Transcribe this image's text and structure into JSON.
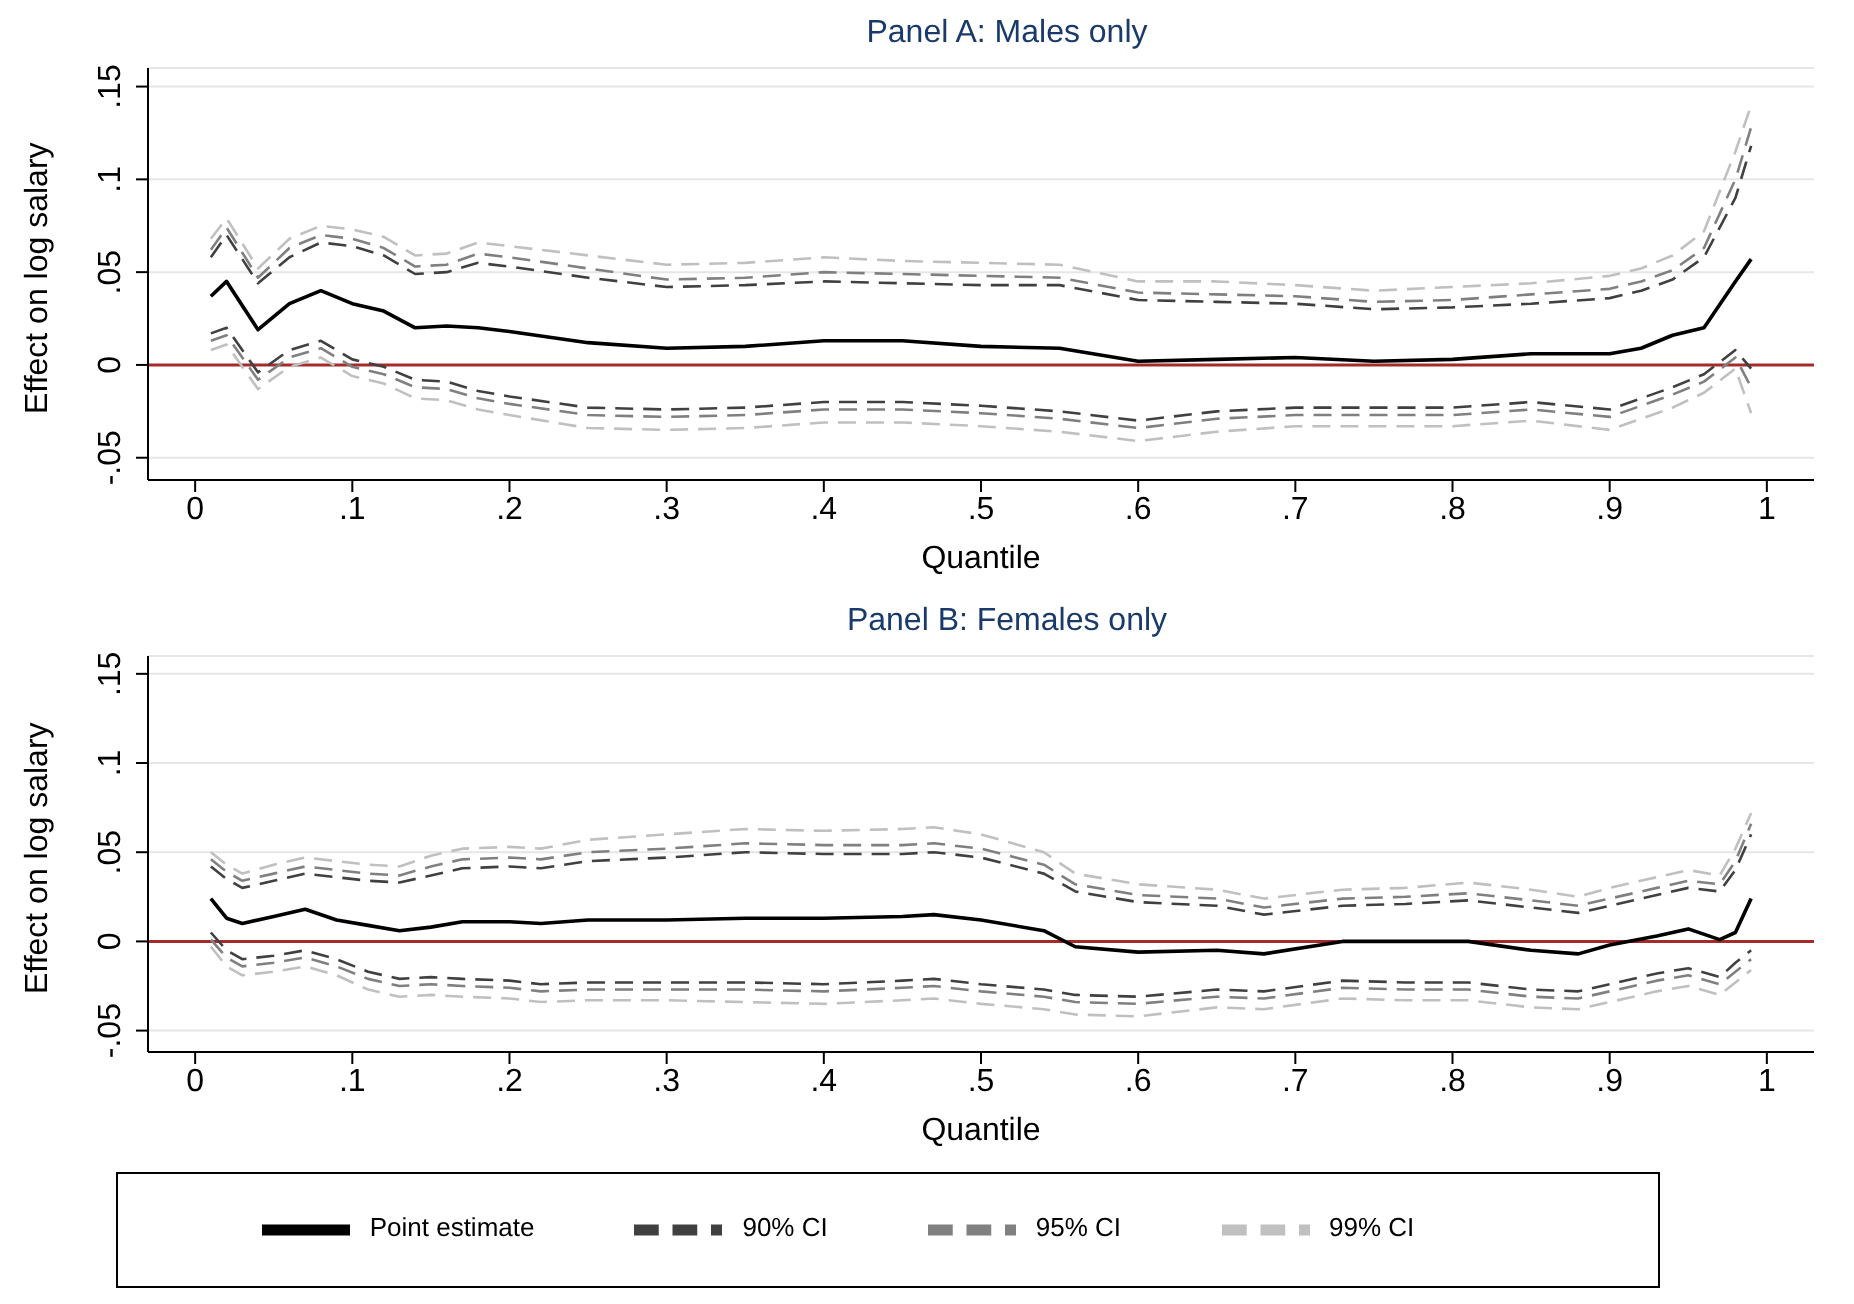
{
  "chart_data": [
    {
      "type": "line",
      "title": "Panel A: Males only",
      "xlabel": "Quantile",
      "ylabel": "Effect on log salary",
      "x": [
        0.01,
        0.02,
        0.04,
        0.06,
        0.08,
        0.1,
        0.12,
        0.14,
        0.16,
        0.18,
        0.2,
        0.25,
        0.3,
        0.35,
        0.4,
        0.45,
        0.5,
        0.55,
        0.6,
        0.65,
        0.7,
        0.75,
        0.8,
        0.85,
        0.9,
        0.92,
        0.94,
        0.96,
        0.98,
        0.99
      ],
      "series": [
        {
          "color": "#000000",
          "line_style": "solid",
          "values": [
            0.037,
            0.045,
            0.019,
            0.033,
            0.04,
            0.033,
            0.029,
            0.02,
            0.021,
            0.02,
            0.018,
            0.012,
            0.009,
            0.01,
            0.013,
            0.013,
            0.01,
            0.009,
            0.002,
            0.003,
            0.004,
            0.002,
            0.003,
            0.006,
            0.006,
            0.009,
            0.016,
            0.02,
            0.045,
            0.057
          ]
        },
        {
          "color": "#404040",
          "line_style": "dashed",
          "values": [
            0.058,
            0.07,
            0.044,
            0.058,
            0.066,
            0.064,
            0.059,
            0.049,
            0.05,
            0.055,
            0.053,
            0.047,
            0.042,
            0.043,
            0.045,
            0.044,
            0.043,
            0.043,
            0.035,
            0.034,
            0.033,
            0.03,
            0.031,
            0.033,
            0.036,
            0.04,
            0.046,
            0.058,
            0.09,
            0.118
          ]
        },
        {
          "color": "#404040",
          "line_style": "dashed",
          "values": [
            0.017,
            0.02,
            -0.004,
            0.008,
            0.013,
            0.003,
            -0.001,
            -0.008,
            -0.009,
            -0.014,
            -0.017,
            -0.023,
            -0.024,
            -0.023,
            -0.02,
            -0.02,
            -0.022,
            -0.025,
            -0.03,
            -0.025,
            -0.023,
            -0.023,
            -0.023,
            -0.02,
            -0.024,
            -0.018,
            -0.012,
            -0.005,
            0.008,
            -0.002
          ]
        },
        {
          "color": "#808080",
          "line_style": "dashed",
          "values": [
            0.062,
            0.074,
            0.047,
            0.063,
            0.07,
            0.068,
            0.063,
            0.053,
            0.054,
            0.06,
            0.058,
            0.052,
            0.046,
            0.047,
            0.05,
            0.049,
            0.048,
            0.047,
            0.039,
            0.038,
            0.037,
            0.034,
            0.035,
            0.038,
            0.041,
            0.045,
            0.051,
            0.063,
            0.1,
            0.128
          ]
        },
        {
          "color": "#808080",
          "line_style": "dashed",
          "values": [
            0.013,
            0.016,
            -0.008,
            0.004,
            0.009,
            -0.001,
            -0.005,
            -0.012,
            -0.013,
            -0.018,
            -0.021,
            -0.027,
            -0.028,
            -0.027,
            -0.024,
            -0.024,
            -0.026,
            -0.029,
            -0.034,
            -0.029,
            -0.027,
            -0.027,
            -0.027,
            -0.024,
            -0.028,
            -0.022,
            -0.016,
            -0.009,
            0.004,
            -0.012
          ]
        },
        {
          "color": "#c0c0c0",
          "line_style": "dashed",
          "values": [
            0.068,
            0.079,
            0.052,
            0.068,
            0.075,
            0.073,
            0.069,
            0.059,
            0.06,
            0.066,
            0.064,
            0.059,
            0.054,
            0.055,
            0.058,
            0.056,
            0.055,
            0.054,
            0.045,
            0.045,
            0.043,
            0.04,
            0.042,
            0.044,
            0.048,
            0.052,
            0.059,
            0.072,
            0.115,
            0.14
          ]
        },
        {
          "color": "#c0c0c0",
          "line_style": "dashed",
          "values": [
            0.008,
            0.011,
            -0.013,
            -0.001,
            0.004,
            -0.006,
            -0.01,
            -0.018,
            -0.019,
            -0.024,
            -0.027,
            -0.034,
            -0.035,
            -0.034,
            -0.031,
            -0.031,
            -0.033,
            -0.036,
            -0.041,
            -0.036,
            -0.033,
            -0.033,
            -0.033,
            -0.03,
            -0.035,
            -0.029,
            -0.023,
            -0.015,
            -0.002,
            -0.026
          ]
        }
      ],
      "xlim": [
        -0.03,
        1.03
      ],
      "xticks": [
        {
          "value": 0,
          "label": "0"
        },
        {
          "value": 0.1,
          "label": ".1"
        },
        {
          "value": 0.2,
          "label": ".2"
        },
        {
          "value": 0.3,
          "label": ".3"
        },
        {
          "value": 0.4,
          "label": ".4"
        },
        {
          "value": 0.5,
          "label": ".5"
        },
        {
          "value": 0.6,
          "label": ".6"
        },
        {
          "value": 0.7,
          "label": ".7"
        },
        {
          "value": 0.8,
          "label": ".8"
        },
        {
          "value": 0.9,
          "label": ".9"
        },
        1
      ],
      "ylim": [
        -0.062,
        0.16
      ],
      "yticks": [
        {
          "value": -0.05,
          "label": "-.05"
        },
        {
          "value": 0,
          "label": "0"
        },
        {
          "value": 0.05,
          "label": ".05"
        },
        {
          "value": 0.1,
          "label": ".1"
        },
        {
          "value": 0.15,
          "label": ".15"
        }
      ],
      "grid": "y",
      "ref_lines": [
        {
          "axis": "y",
          "value": 0,
          "color": "#a52a2a"
        }
      ]
    },
    {
      "type": "line",
      "title": "Panel B: Females only",
      "xlabel": "Quantile",
      "ylabel": "Effect on log salary",
      "x": [
        0.01,
        0.02,
        0.03,
        0.05,
        0.07,
        0.09,
        0.11,
        0.13,
        0.15,
        0.17,
        0.2,
        0.22,
        0.25,
        0.3,
        0.35,
        0.4,
        0.45,
        0.47,
        0.5,
        0.54,
        0.56,
        0.6,
        0.65,
        0.68,
        0.73,
        0.77,
        0.81,
        0.85,
        0.88,
        0.9,
        0.93,
        0.95,
        0.97,
        0.98,
        0.99
      ],
      "series": [
        {
          "name": "Point estimate",
          "color": "#000000",
          "line_style": "solid",
          "values": [
            0.024,
            0.013,
            0.01,
            0.014,
            0.018,
            0.012,
            0.009,
            0.006,
            0.008,
            0.011,
            0.011,
            0.01,
            0.012,
            0.012,
            0.013,
            0.013,
            0.014,
            0.015,
            0.012,
            0.006,
            -0.003,
            -0.006,
            -0.005,
            -0.007,
            0.0,
            0.0,
            0.0,
            -0.005,
            -0.007,
            -0.002,
            0.003,
            0.007,
            0.001,
            0.005,
            0.024
          ]
        },
        {
          "name": "90% CI",
          "color": "#404040",
          "line_style": "dashed",
          "values": [
            0.042,
            0.035,
            0.03,
            0.034,
            0.038,
            0.036,
            0.034,
            0.033,
            0.037,
            0.041,
            0.042,
            0.041,
            0.045,
            0.047,
            0.05,
            0.049,
            0.049,
            0.05,
            0.047,
            0.038,
            0.028,
            0.022,
            0.02,
            0.015,
            0.02,
            0.021,
            0.023,
            0.019,
            0.016,
            0.02,
            0.026,
            0.03,
            0.028,
            0.04,
            0.06
          ]
        },
        {
          "color": "#404040",
          "line_style": "dashed",
          "values": [
            0.005,
            -0.005,
            -0.01,
            -0.008,
            -0.005,
            -0.01,
            -0.017,
            -0.021,
            -0.02,
            -0.021,
            -0.022,
            -0.024,
            -0.023,
            -0.023,
            -0.023,
            -0.024,
            -0.022,
            -0.021,
            -0.024,
            -0.027,
            -0.03,
            -0.031,
            -0.027,
            -0.028,
            -0.022,
            -0.023,
            -0.023,
            -0.027,
            -0.028,
            -0.024,
            -0.018,
            -0.015,
            -0.02,
            -0.012,
            -0.005
          ]
        },
        {
          "name": "95% CI",
          "color": "#808080",
          "line_style": "dashed",
          "values": [
            0.046,
            0.039,
            0.034,
            0.038,
            0.042,
            0.04,
            0.038,
            0.037,
            0.042,
            0.046,
            0.047,
            0.046,
            0.05,
            0.052,
            0.055,
            0.054,
            0.054,
            0.055,
            0.052,
            0.043,
            0.032,
            0.026,
            0.024,
            0.019,
            0.024,
            0.025,
            0.027,
            0.023,
            0.02,
            0.024,
            0.03,
            0.034,
            0.032,
            0.045,
            0.066
          ]
        },
        {
          "color": "#808080",
          "line_style": "dashed",
          "values": [
            0.001,
            -0.009,
            -0.014,
            -0.012,
            -0.009,
            -0.014,
            -0.021,
            -0.025,
            -0.024,
            -0.025,
            -0.026,
            -0.028,
            -0.027,
            -0.027,
            -0.027,
            -0.028,
            -0.026,
            -0.025,
            -0.028,
            -0.031,
            -0.034,
            -0.035,
            -0.031,
            -0.032,
            -0.026,
            -0.027,
            -0.027,
            -0.031,
            -0.032,
            -0.028,
            -0.022,
            -0.019,
            -0.024,
            -0.017,
            -0.01
          ]
        },
        {
          "name": "99% CI",
          "color": "#c0c0c0",
          "line_style": "dashed",
          "values": [
            0.05,
            0.043,
            0.038,
            0.043,
            0.047,
            0.045,
            0.043,
            0.042,
            0.048,
            0.052,
            0.053,
            0.052,
            0.057,
            0.06,
            0.063,
            0.062,
            0.063,
            0.064,
            0.06,
            0.05,
            0.038,
            0.032,
            0.029,
            0.024,
            0.029,
            0.03,
            0.033,
            0.029,
            0.025,
            0.03,
            0.036,
            0.04,
            0.037,
            0.052,
            0.072
          ]
        },
        {
          "color": "#c0c0c0",
          "line_style": "dashed",
          "values": [
            -0.003,
            -0.014,
            -0.019,
            -0.017,
            -0.014,
            -0.019,
            -0.027,
            -0.031,
            -0.03,
            -0.031,
            -0.032,
            -0.034,
            -0.033,
            -0.033,
            -0.034,
            -0.035,
            -0.033,
            -0.032,
            -0.035,
            -0.038,
            -0.041,
            -0.042,
            -0.037,
            -0.038,
            -0.032,
            -0.033,
            -0.033,
            -0.037,
            -0.038,
            -0.034,
            -0.028,
            -0.025,
            -0.03,
            -0.023,
            -0.016
          ]
        }
      ],
      "xlim": [
        -0.03,
        1.03
      ],
      "xticks": [
        {
          "value": 0,
          "label": "0"
        },
        {
          "value": 0.1,
          "label": ".1"
        },
        {
          "value": 0.2,
          "label": ".2"
        },
        {
          "value": 0.3,
          "label": ".3"
        },
        {
          "value": 0.4,
          "label": ".4"
        },
        {
          "value": 0.5,
          "label": ".5"
        },
        {
          "value": 0.6,
          "label": ".6"
        },
        {
          "value": 0.7,
          "label": ".7"
        },
        {
          "value": 0.8,
          "label": ".8"
        },
        {
          "value": 0.9,
          "label": ".9"
        },
        1
      ],
      "ylim": [
        -0.062,
        0.16
      ],
      "yticks": [
        {
          "value": -0.05,
          "label": "-.05"
        },
        {
          "value": 0,
          "label": "0"
        },
        {
          "value": 0.05,
          "label": ".05"
        },
        {
          "value": 0.1,
          "label": ".1"
        },
        {
          "value": 0.15,
          "label": ".15"
        }
      ],
      "grid": "y",
      "legend": "bottom",
      "ref_lines": [
        {
          "axis": "y",
          "value": 0,
          "color": "#a52a2a"
        }
      ]
    }
  ]
}
